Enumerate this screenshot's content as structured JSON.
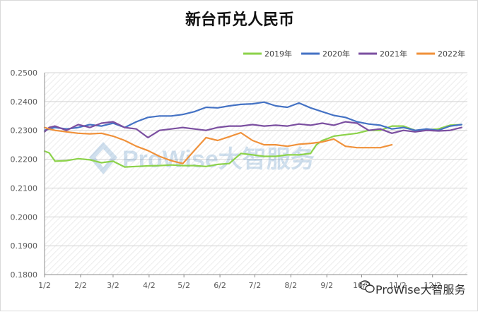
{
  "chart_data": {
    "type": "line",
    "title": "新台币兑人民币",
    "xlabel": "",
    "ylabel": "",
    "ylim": [
      0.18,
      0.25
    ],
    "yticks": [
      "0.2500",
      "0.2400",
      "0.2300",
      "0.2200",
      "0.2100",
      "0.2000",
      "0.1900",
      "0.1800"
    ],
    "x_tick_labels": [
      "1/2",
      "2/2",
      "3/2",
      "4/2",
      "5/2",
      "6/2",
      "7/2",
      "8/2",
      "9/2",
      "10/2",
      "11/2",
      "12/2"
    ],
    "grid": "horizontal",
    "legend_position": "top-right",
    "series": [
      {
        "name": "2019年",
        "color": "#8cd24a",
        "x": [
          1,
          5,
          10,
          20,
          30,
          40,
          50,
          60,
          70,
          80,
          90,
          100,
          110,
          120,
          130,
          140,
          150,
          160,
          170,
          180,
          190,
          200,
          210,
          220,
          230,
          235,
          240,
          245,
          250,
          260,
          270,
          280,
          290,
          300,
          310,
          320,
          330,
          340,
          350,
          360
        ],
        "y": [
          0.2228,
          0.2222,
          0.2193,
          0.2195,
          0.2202,
          0.2198,
          0.2188,
          0.2193,
          0.2173,
          0.2175,
          0.2177,
          0.2178,
          0.218,
          0.2178,
          0.2178,
          0.2175,
          0.2182,
          0.2185,
          0.222,
          0.2215,
          0.221,
          0.221,
          0.2215,
          0.2215,
          0.222,
          0.225,
          0.2265,
          0.2272,
          0.228,
          0.2285,
          0.229,
          0.23,
          0.23,
          0.2315,
          0.2315,
          0.23,
          0.2302,
          0.2305,
          0.2318,
          0.232
        ]
      },
      {
        "name": "2020年",
        "color": "#4472c4",
        "x": [
          1,
          5,
          10,
          20,
          30,
          40,
          50,
          60,
          70,
          80,
          90,
          100,
          110,
          120,
          130,
          140,
          150,
          160,
          170,
          180,
          190,
          200,
          210,
          220,
          230,
          240,
          250,
          260,
          270,
          280,
          290,
          300,
          310,
          320,
          330,
          340,
          350,
          360
        ],
        "y": [
          0.23,
          0.2305,
          0.231,
          0.2305,
          0.231,
          0.232,
          0.2315,
          0.2325,
          0.231,
          0.233,
          0.2345,
          0.235,
          0.235,
          0.2355,
          0.2365,
          0.238,
          0.2378,
          0.2385,
          0.239,
          0.2392,
          0.2398,
          0.2385,
          0.238,
          0.2395,
          0.2378,
          0.2365,
          0.2352,
          0.2345,
          0.233,
          0.2322,
          0.2318,
          0.2305,
          0.231,
          0.23,
          0.2305,
          0.23,
          0.2315,
          0.232
        ]
      },
      {
        "name": "2021年",
        "color": "#7b4fa0",
        "x": [
          1,
          5,
          10,
          20,
          30,
          40,
          50,
          60,
          70,
          80,
          90,
          100,
          110,
          120,
          130,
          140,
          150,
          160,
          170,
          180,
          190,
          200,
          210,
          220,
          230,
          240,
          250,
          260,
          270,
          280,
          290,
          300,
          310,
          320,
          330,
          340,
          350,
          360
        ],
        "y": [
          0.2295,
          0.231,
          0.2315,
          0.23,
          0.232,
          0.231,
          0.2325,
          0.233,
          0.231,
          0.2305,
          0.2275,
          0.23,
          0.2305,
          0.231,
          0.2305,
          0.23,
          0.231,
          0.2315,
          0.2315,
          0.232,
          0.2315,
          0.2318,
          0.2315,
          0.2322,
          0.2318,
          0.2325,
          0.2318,
          0.233,
          0.2325,
          0.23,
          0.2305,
          0.229,
          0.23,
          0.2295,
          0.23,
          0.2298,
          0.23,
          0.231
        ]
      },
      {
        "name": "2022年",
        "color": "#f0913a",
        "x": [
          1,
          5,
          10,
          20,
          30,
          40,
          50,
          60,
          70,
          80,
          90,
          100,
          110,
          120,
          130,
          140,
          150,
          160,
          170,
          180,
          190,
          200,
          210,
          220,
          230,
          240,
          250,
          260,
          270,
          280,
          290,
          300
        ],
        "y": [
          0.231,
          0.2305,
          0.23,
          0.2295,
          0.229,
          0.2288,
          0.229,
          0.228,
          0.2265,
          0.2245,
          0.223,
          0.221,
          0.2195,
          0.2185,
          0.223,
          0.2275,
          0.2265,
          0.2278,
          0.2292,
          0.2265,
          0.225,
          0.225,
          0.2245,
          0.2252,
          0.2255,
          0.226,
          0.227,
          0.2245,
          0.224,
          0.224,
          0.224,
          0.225
        ]
      }
    ]
  },
  "watermark": {
    "center_text": "ProWise大智服务",
    "corner_text": "ProWise大智服务"
  }
}
